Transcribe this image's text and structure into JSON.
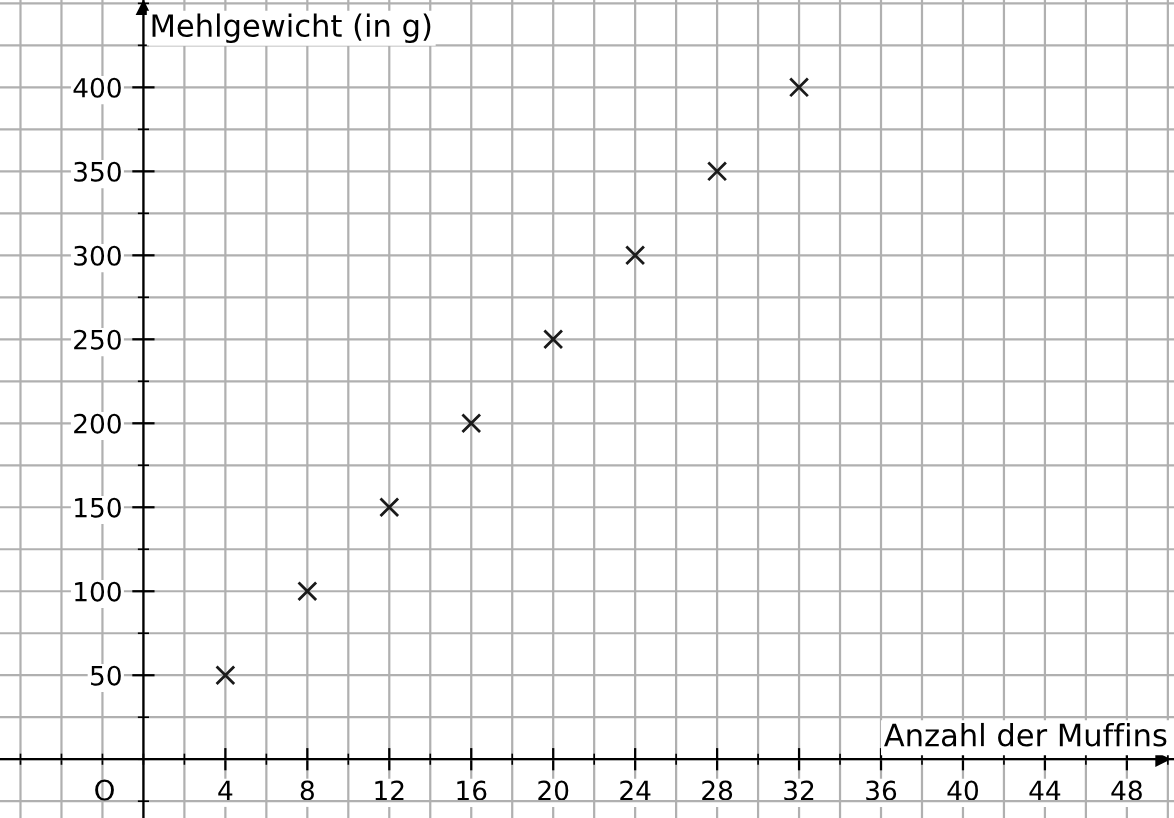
{
  "chart_data": {
    "type": "scatter",
    "xlabel": "Anzahl der Muffins",
    "ylabel": "Mehlgewicht (in g)",
    "x": [
      4,
      8,
      12,
      16,
      20,
      24,
      28,
      32
    ],
    "series": [
      {
        "color": "#1a1a1a",
        "values": [
          50,
          100,
          150,
          200,
          250,
          300,
          350,
          400
        ]
      }
    ],
    "marker": "cross",
    "grid": true,
    "legend": false,
    "xlim": [
      -7,
      50.3
    ],
    "ylim": [
      -35,
      452
    ],
    "xticks": [
      4,
      8,
      12,
      16,
      20,
      24,
      28,
      32,
      36,
      40,
      44,
      48
    ],
    "yticks": [
      50,
      100,
      150,
      200,
      250,
      300,
      350,
      400
    ],
    "annotations": [
      "O"
    ]
  }
}
